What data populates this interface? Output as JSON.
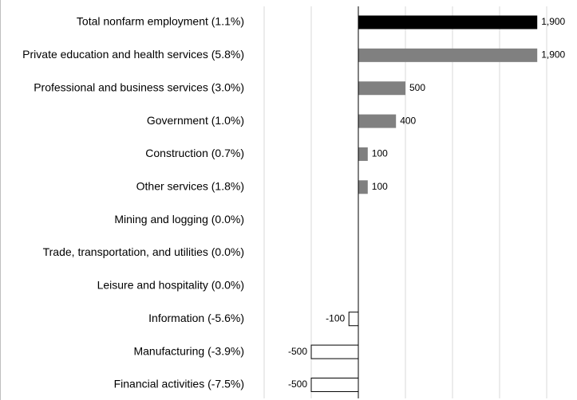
{
  "chart_data": {
    "type": "hbar",
    "categories": [
      "Total nonfarm employment (1.1%)",
      "Private education and health services (5.8%)",
      "Professional and business services (3.0%)",
      "Government (1.0%)",
      "Construction (0.7%)",
      "Other services (1.8%)",
      "Mining and logging (0.0%)",
      "Trade, transportation, and utilities (0.0%)",
      "Leisure and hospitality (0.0%)",
      "Information (-5.6%)",
      "Manufacturing (-3.9%)",
      "Financial activities (-7.5%)"
    ],
    "values": [
      1900,
      1900,
      500,
      400,
      100,
      100,
      0,
      0,
      0,
      -100,
      -500,
      -500
    ],
    "value_labels": [
      "1,900",
      "1,900",
      "500",
      "400",
      "100",
      "100",
      null,
      null,
      null,
      "-100",
      "-500",
      "-500"
    ],
    "colors": [
      "#000000",
      "#808080",
      "#808080",
      "#808080",
      "#808080",
      "#808080",
      "#808080",
      "#808080",
      "#808080",
      "#ffffff",
      "#ffffff",
      "#ffffff"
    ],
    "xlim": [
      -1000,
      2000
    ],
    "xticks": [
      -1000,
      -500,
      0,
      500,
      1000,
      1500,
      2000
    ],
    "grid": true
  }
}
